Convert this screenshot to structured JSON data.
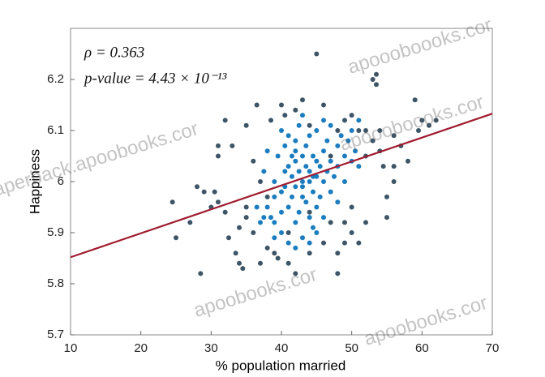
{
  "chart_data": {
    "type": "scatter",
    "xlabel": "% population married",
    "ylabel": "Happiness",
    "annotations": [
      "ρ = 0.363",
      "p-value = 4.43 × 10⁻¹³"
    ],
    "watermarks": [
      "paperback.apoobooks.cor",
      "apoobooks.cor",
      "apoooboooks.cor",
      "apoobooks.cor",
      "apoooboooks.cor"
    ],
    "xlim": [
      10,
      70
    ],
    "xticks": [
      10,
      20,
      30,
      40,
      50,
      60,
      70
    ],
    "ylim": [
      5.7,
      6.3
    ],
    "yticks": [
      5.7,
      5.8,
      5.9,
      6,
      6.1,
      6.2
    ],
    "fit": {
      "color": "#a01c30",
      "x": [
        10,
        70
      ],
      "y": [
        5.852,
        6.133
      ]
    },
    "series": [
      {
        "color": "#3d5566",
        "x": [
          24.5,
          25,
          27,
          28,
          29,
          28.5,
          30,
          31,
          31,
          32,
          32,
          33,
          32.5,
          33.5,
          34,
          34,
          34.5,
          35,
          35,
          35,
          36,
          36.5,
          37,
          37,
          38,
          38.5,
          39,
          39.5,
          40,
          40.5,
          41,
          42,
          42,
          43,
          44,
          44,
          45,
          46,
          46,
          47,
          48,
          48,
          49,
          49,
          50,
          50,
          51,
          52,
          52,
          53,
          53.5,
          53.5,
          54,
          54,
          54.5,
          55,
          55,
          56,
          56,
          57,
          58,
          59,
          59.5,
          60,
          61,
          62,
          56,
          53,
          52,
          51,
          30.5,
          31,
          36,
          38,
          41,
          44,
          47,
          48,
          49,
          50
        ],
        "values": [
          5.96,
          5.89,
          5.92,
          5.99,
          5.98,
          5.82,
          5.95,
          6.07,
          6.05,
          6.12,
          5.94,
          6.07,
          5.89,
          5.86,
          5.91,
          5.84,
          5.83,
          6.11,
          5.95,
          5.93,
          6.04,
          6.15,
          5.84,
          6.0,
          5.97,
          6.12,
          5.86,
          5.85,
          6.15,
          6.13,
          5.84,
          5.82,
          6.14,
          6.16,
          6.11,
          5.86,
          6.25,
          6.15,
          5.88,
          5.92,
          5.86,
          5.82,
          6.12,
          5.92,
          5.95,
          6.13,
          5.88,
          6.1,
          5.92,
          6.2,
          6.21,
          6.19,
          6.1,
          6.06,
          6.03,
          5.97,
          5.93,
          6.09,
          6.03,
          6.07,
          6.04,
          6.16,
          6.1,
          6.12,
          6.11,
          6.12,
          6.0,
          6.08,
          6.05,
          6.1,
          5.98,
          5.96,
          5.9,
          5.87,
          5.9,
          5.94,
          6.05,
          6.1,
          5.88,
          5.9
        ]
      },
      {
        "color": "#1b7dbf",
        "x": [
          38,
          38.5,
          39,
          39,
          39.5,
          40,
          40,
          40.5,
          40.5,
          41,
          41,
          41,
          41.5,
          41.5,
          42,
          42,
          42,
          42,
          42.5,
          42.5,
          42.5,
          43,
          43,
          43,
          43,
          43.5,
          43.5,
          43.5,
          44,
          44,
          44,
          44,
          44.5,
          44.5,
          44.5,
          45,
          45,
          45,
          45,
          45.5,
          45.5,
          46,
          46,
          46,
          46.5,
          46.5,
          47,
          47,
          47,
          47.5,
          48,
          48,
          48,
          48.5,
          49,
          49,
          49.5,
          50,
          50,
          50.5,
          51,
          51,
          40,
          39,
          37.5,
          37,
          36.5,
          38,
          37.5,
          40,
          41,
          42,
          39,
          44,
          45,
          43,
          46,
          42,
          43,
          44.5,
          41.5,
          40.5
        ],
        "values": [
          5.95,
          5.93,
          5.92,
          6.0,
          6.05,
          5.98,
          5.9,
          6.02,
          6.07,
          5.95,
          6.03,
          6.09,
          5.97,
          6.01,
          5.92,
          5.99,
          6.04,
          6.08,
          5.94,
          6.02,
          6.11,
          5.97,
          6.0,
          6.05,
          5.89,
          5.96,
          6.03,
          6.07,
          5.93,
          6.0,
          6.02,
          6.09,
          5.98,
          6.05,
          5.91,
          6.01,
          6.04,
          5.95,
          6.1,
          6.03,
          5.97,
          6.06,
          6.0,
          5.93,
          6.02,
          6.08,
          5.98,
          6.04,
          6.11,
          6.01,
          6.07,
          5.96,
          6.03,
          6.09,
          6.05,
          6.0,
          6.08,
          6.04,
          6.1,
          6.06,
          6.03,
          6.12,
          5.94,
          5.97,
          5.93,
          5.92,
          5.95,
          6.06,
          6.02,
          6.1,
          5.88,
          5.87,
          5.89,
          5.88,
          5.9,
          6.13,
          6.12,
          6.06,
          5.99,
          6.01,
          6.05,
          5.99
        ]
      }
    ]
  }
}
